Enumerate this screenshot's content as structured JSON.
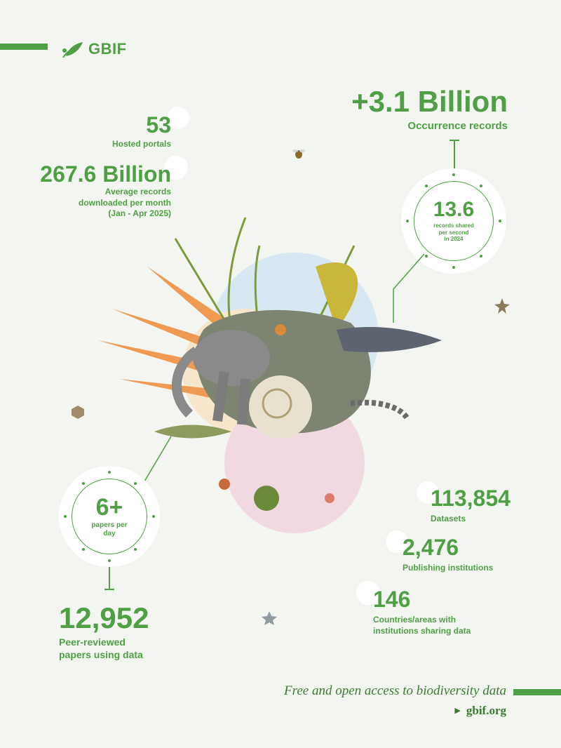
{
  "brand": {
    "logo_text": "GBIF"
  },
  "stats": {
    "portals": {
      "value": "53",
      "label": "Hosted portals"
    },
    "downloads": {
      "value": "267.6 Billion",
      "label_lines": [
        "Average records",
        "downloaded per month",
        "(Jan - Apr 2025)"
      ]
    },
    "occurrences": {
      "value": "+3.1 Billion",
      "label": "Occurrence records"
    },
    "per_second": {
      "value": "13.6",
      "label_lines": [
        "records shared",
        "per second",
        "in 2024"
      ]
    },
    "papers_per_day": {
      "value": "6+",
      "label_lines": [
        "papers per",
        "day"
      ]
    },
    "papers": {
      "value": "12,952",
      "label_lines": [
        "Peer-reviewed",
        "papers using data"
      ]
    },
    "datasets": {
      "value": "113,854",
      "label": "Datasets"
    },
    "institutions": {
      "value": "2,476",
      "label": "Publishing institutions"
    },
    "countries": {
      "value": "146",
      "label_lines": [
        "Countries/areas with",
        "institutions sharing data"
      ]
    }
  },
  "footer": {
    "tagline": "Free and open access to biodiversity data",
    "site": "gbif.org"
  },
  "colors": {
    "accent": "#4f9f45",
    "background": "#f3f5f0"
  }
}
